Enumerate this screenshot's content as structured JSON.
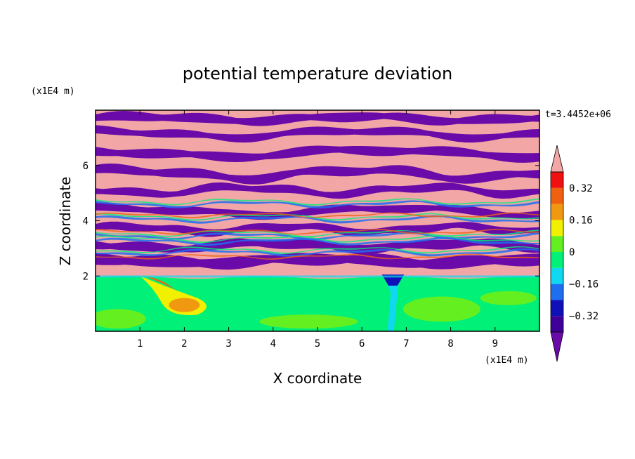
{
  "chart_data": {
    "type": "heatmap",
    "title": "potential temperature deviation",
    "xlabel": "X coordinate",
    "ylabel": "Z coordinate",
    "x_unit": "(x1E4 m)",
    "y_unit": "(x1E4 m)",
    "time_label": "t=3.4452e+06",
    "xlim": [
      0,
      10
    ],
    "ylim": [
      0,
      8
    ],
    "x_ticks": [
      "1",
      "2",
      "3",
      "4",
      "5",
      "6",
      "7",
      "8",
      "9"
    ],
    "y_ticks": [
      "2",
      "4",
      "6"
    ],
    "colorbar": {
      "levels": [
        -0.4,
        -0.32,
        -0.24,
        -0.16,
        -0.08,
        0,
        0.08,
        0.16,
        0.24,
        0.32,
        0.4
      ],
      "labels": [
        "0.32",
        "0.16",
        "0",
        "−0.16",
        "−0.32"
      ],
      "label_values": [
        0.32,
        0.16,
        0,
        -0.16,
        -0.32
      ],
      "over_color": "#f2a6a6",
      "under_color": "#6a0aa8",
      "colors": [
        "#3e0098",
        "#1010b8",
        "#1e6ef0",
        "#10d8f0",
        "#00f078",
        "#64f020",
        "#f0f000",
        "#f09810",
        "#f06010",
        "#f01010"
      ]
    },
    "field_description_regions": {
      "lower_layer": "mostly green (0 to 0.08) below z≈2, with yellow/orange warm plume near x≈1.5–2.5",
      "upper_layer": "alternating pink (above 0.4) and purple (below -0.4) horizontal bands above z≈2"
    }
  }
}
